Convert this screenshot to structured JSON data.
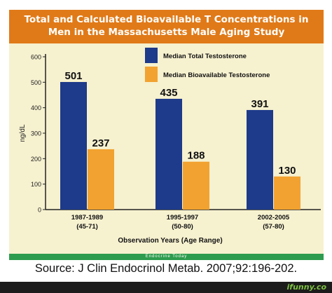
{
  "title_lines": [
    "Total and Calculated Bioavailable T Concentrations in",
    "Men in the Massachusetts Male Aging Study"
  ],
  "colors": {
    "title_band": "#e07a18",
    "panel": "#f6f1cf",
    "footer_band": "#2e9c4e",
    "series_total": "#1e3a8a",
    "series_bio": "#f2a230"
  },
  "footer_text": "Endocrine Today",
  "source": "Source: J Clin Endocrinol Metab. 2007;92:196-202.",
  "watermark": "ifunny.co",
  "chart_data": {
    "type": "bar",
    "title": "",
    "categories": [
      "1987-1989",
      "1995-1997",
      "2002-2005"
    ],
    "category_sublabels": [
      "(45-71)",
      "(50-80)",
      "(57-80)"
    ],
    "xlabel": "Observation Years (Age Range)",
    "ylabel": "ng/dL",
    "ylim": [
      0,
      600
    ],
    "yticks": [
      0,
      100,
      200,
      300,
      400,
      500,
      600
    ],
    "grid": false,
    "legend_position": "top-right",
    "series": [
      {
        "name": "Median Total Testosterone",
        "values": [
          501,
          435,
          391
        ]
      },
      {
        "name": "Median Bioavailable Testosterone",
        "values": [
          237,
          188,
          130
        ]
      }
    ]
  }
}
